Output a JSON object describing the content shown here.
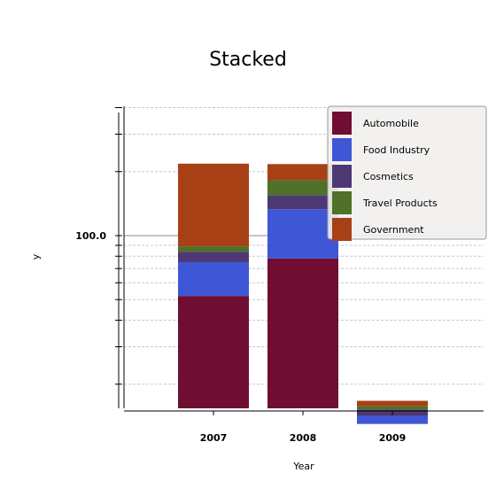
{
  "chart_data": {
    "type": "bar",
    "stacked": true,
    "title": "Stacked",
    "xlabel": "Year",
    "ylabel": "y",
    "y_scale": "log",
    "y_tick_labels": [
      "100.0"
    ],
    "grid": true,
    "legend_position": "top-right",
    "categories": [
      "2007",
      "2008",
      "2009"
    ],
    "series": [
      {
        "name": "Automobile",
        "color": "#6f0d33",
        "values": [
          52,
          78,
          13
        ]
      },
      {
        "name": "Food Industry",
        "color": "#3f56d6",
        "values": [
          23,
          55,
          1.2
        ]
      },
      {
        "name": "Cosmetics",
        "color": "#4d3873",
        "values": [
          9,
          22,
          1.0
        ]
      },
      {
        "name": "Travel Products",
        "color": "#4f7128",
        "values": [
          5,
          27,
          0.6
        ]
      },
      {
        "name": "Government",
        "color": "#a84016",
        "values": [
          129,
          35,
          0.9
        ]
      }
    ]
  }
}
